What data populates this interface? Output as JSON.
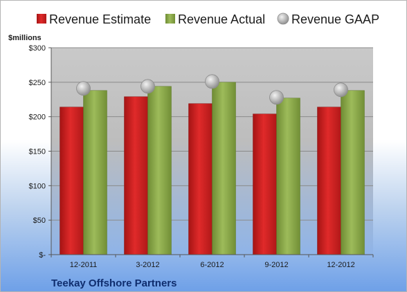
{
  "chart_data": {
    "type": "bar",
    "title": "",
    "units_label": "$millions",
    "footer": "Teekay Offshore Partners",
    "categories": [
      "12-2011",
      "3-2012",
      "6-2012",
      "9-2012",
      "12-2012"
    ],
    "series": [
      {
        "name": "Revenue Estimate",
        "kind": "bar",
        "color": "#d42020",
        "values": [
          214,
          229,
          219,
          204,
          214
        ]
      },
      {
        "name": "Revenue Actual",
        "kind": "bar",
        "color": "#8fae4c",
        "values": [
          238,
          244,
          250,
          227,
          238
        ]
      },
      {
        "name": "Revenue GAAP",
        "kind": "marker",
        "color": "#b8b8b8",
        "values": [
          241,
          244,
          251,
          228,
          239
        ]
      }
    ],
    "yticks": [
      0,
      50,
      100,
      150,
      200,
      250,
      300
    ],
    "ytick_labels": [
      "$-",
      "$50",
      "$100",
      "$150",
      "$200",
      "$250",
      "$300"
    ],
    "ylim": [
      0,
      300
    ],
    "grid": true,
    "legend_position": "top"
  }
}
